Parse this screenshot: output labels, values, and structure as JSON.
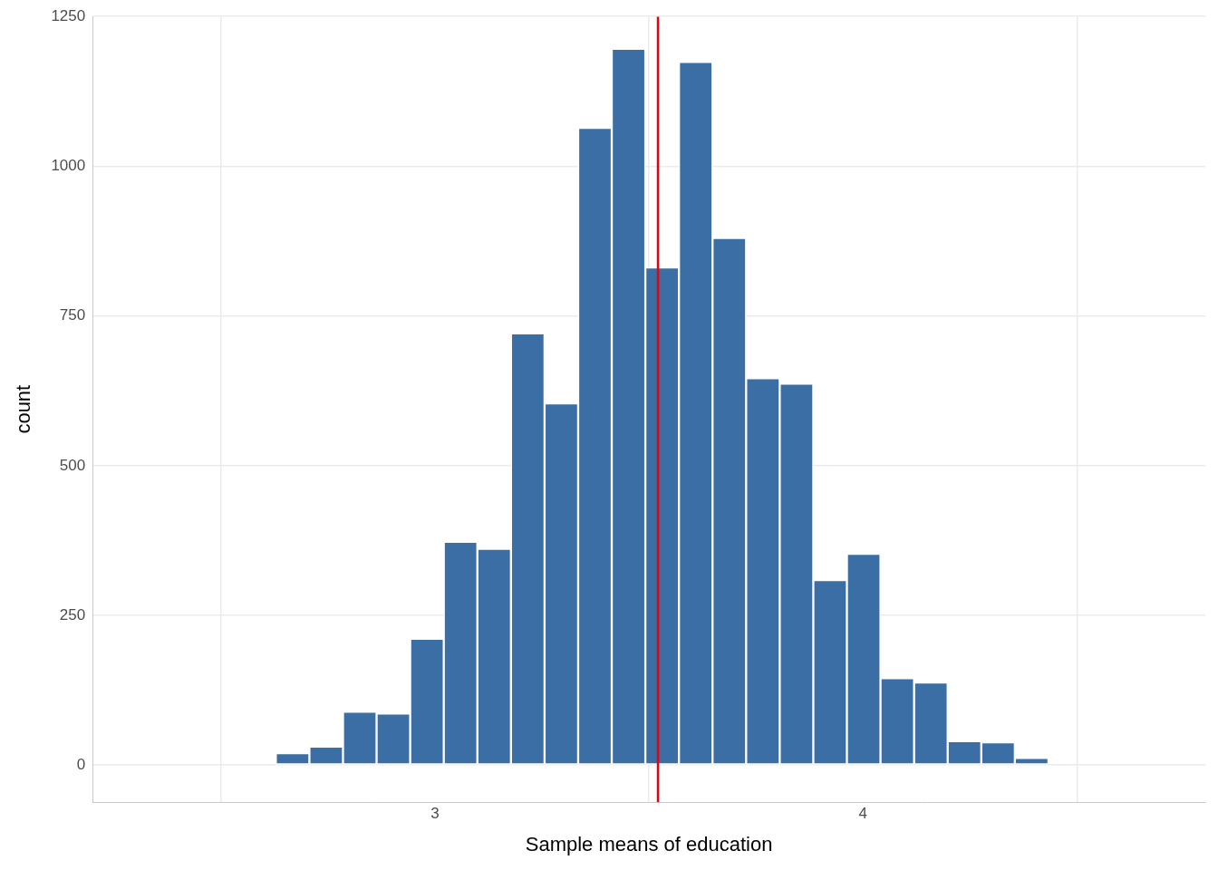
{
  "chart_data": {
    "type": "histogram",
    "xlabel": "Sample means of education",
    "ylabel": "count",
    "bins": [
      2.314,
      2.3925,
      2.471,
      2.5495,
      2.628,
      2.7065,
      2.785,
      2.8635,
      2.942,
      3.0205,
      3.099,
      3.1775,
      3.256,
      3.3345,
      3.413,
      3.4915,
      3.57,
      3.6485,
      3.727,
      3.8055,
      3.884,
      3.9625,
      4.041,
      4.1195,
      4.198,
      4.2765,
      4.355,
      4.4335,
      4.512,
      4.5905,
      4.669
    ],
    "values": [
      0,
      0,
      0,
      0,
      20,
      31,
      89,
      86,
      211,
      373,
      361,
      721,
      604,
      1064,
      1196,
      831,
      1174,
      880,
      646,
      637,
      309,
      353,
      145,
      138,
      40,
      38,
      12,
      0,
      0,
      0
    ],
    "color": "#3a6ea5",
    "xlim": [
      2.2,
      4.8
    ],
    "ylim": [
      -62,
      1250
    ],
    "xticks": [
      3,
      4
    ],
    "yticks": [
      0,
      250,
      500,
      750,
      1000,
      1250
    ],
    "grid": true,
    "vline": {
      "value": 3.521,
      "color": "#e8000b"
    }
  }
}
